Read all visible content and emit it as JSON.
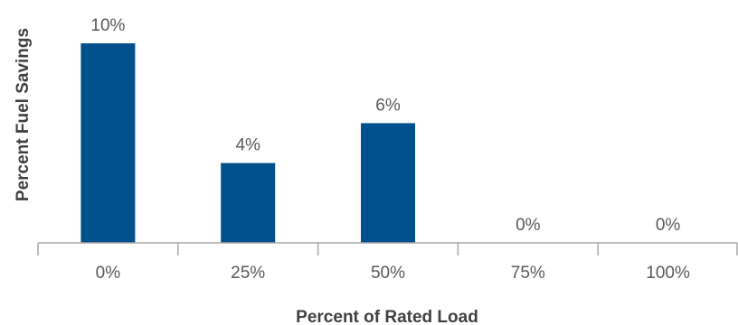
{
  "chart_data": {
    "type": "bar",
    "categories": [
      "0%",
      "25%",
      "50%",
      "75%",
      "100%"
    ],
    "values": [
      10,
      4,
      6,
      0,
      0
    ],
    "data_labels": [
      "10%",
      "4%",
      "6%",
      "0%",
      "0%"
    ],
    "title": "",
    "xlabel": "Percent of Rated Load",
    "ylabel": "Percent Fuel Savings",
    "ylim": [
      0,
      10
    ],
    "grid": false,
    "legend": "none",
    "colors": {
      "bar": "#00508c",
      "axis": "#a6a6a6",
      "text": "#595959",
      "title": "#404040"
    }
  }
}
